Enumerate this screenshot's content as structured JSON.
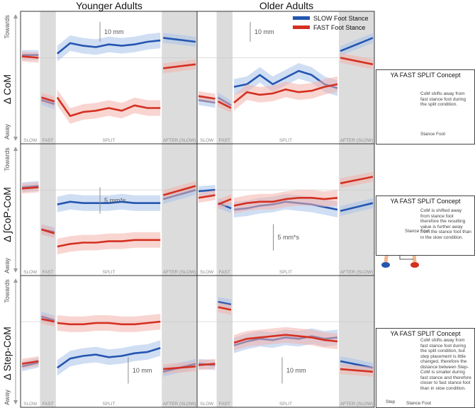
{
  "column_titles": [
    "Younger Adults",
    "Older Adults"
  ],
  "row_labels": [
    "Δ CoM",
    "Δ ∫CoP-CoM",
    "Δ Step-CoM"
  ],
  "towards_label": "Towards",
  "away_label": "Away",
  "legend": [
    {
      "label": "SLOW Foot Stance",
      "color": "#2456b0"
    },
    {
      "label": "FAST Foot Stance",
      "color": "#d43020"
    }
  ],
  "phase_labels": [
    "SLOW",
    "FAST",
    "SPLIT",
    "AFTER (SLOW)"
  ],
  "scale_bars": [
    "10 mm",
    "10 mm",
    "5 mm*s",
    "5 mm*s",
    "10 mm",
    "10 mm"
  ],
  "concepts": [
    {
      "title": "YA FAST SPLIT Concept",
      "text": "CoM shifts away from fast stance foot during the split condition.",
      "foot_label": "Stance Foot"
    },
    {
      "title": "YA FAST SPLIT Concept",
      "text": "CoM is shifted away from stance foot therefore the resulting value is further away from the stance foot than in the slow condition.",
      "foot_label": "Stance Foot"
    },
    {
      "title": "YA FAST SPLIT Concept",
      "text": "CoM shifts away from fast stance foot during the split condition, but step placement is little changed, therefore the distance between Step-CoM is smaller during fast stance and therefore closer to fast stance foot than in slow condition.",
      "foot_label": "Stance Foot",
      "step_label": "Step"
    }
  ],
  "colors": {
    "slow": "#2456b0",
    "fast": "#d43020",
    "slow_band": "#a9c3ea",
    "fast_band": "#f3b2ab",
    "phase_shade": "#dcdcdc"
  },
  "chart_data": [
    {
      "type": "line",
      "group": "Younger Adults",
      "measure": "Δ CoM",
      "series": [
        {
          "name": "SLOW Foot Stance",
          "segments": {
            "SLOW": [
              0.2,
              0.2
            ],
            "FAST": [
              -3.2,
              -3.5
            ],
            "SPLIT": [
              0.3,
              1.1,
              0.9,
              0.8,
              1.0,
              0.9,
              1.0,
              1.2,
              1.3
            ],
            "AFTER (SLOW)": [
              1.5,
              1.2
            ]
          }
        },
        {
          "name": "FAST Foot Stance",
          "segments": {
            "SLOW": [
              0.1,
              0.0
            ],
            "FAST": [
              -3.0,
              -3.3
            ],
            "SPLIT": [
              -3.0,
              -4.4,
              -4.1,
              -4.0,
              -3.8,
              -4.0,
              -3.6,
              -3.8,
              -3.8
            ],
            "AFTER (SLOW)": [
              -0.8,
              -0.5
            ]
          }
        }
      ]
    },
    {
      "type": "line",
      "group": "Older Adults",
      "measure": "Δ CoM",
      "series": [
        {
          "name": "SLOW Foot Stance",
          "segments": {
            "SLOW": [
              -3.2,
              -3.4
            ],
            "FAST": [
              -3.0,
              -3.6
            ],
            "SPLIT": [
              -2.2,
              -2.0,
              -1.3,
              -2.0,
              -1.5,
              -1.0,
              -1.3,
              -2.0,
              -2.3
            ],
            "AFTER (SLOW)": [
              0.5,
              1.5
            ]
          }
        },
        {
          "name": "FAST Foot Stance",
          "segments": {
            "SLOW": [
              -2.9,
              -3.1
            ],
            "FAST": [
              -3.3,
              -3.8
            ],
            "SPLIT": [
              -3.4,
              -2.6,
              -2.8,
              -2.7,
              -2.4,
              -2.6,
              -2.5,
              -2.2,
              -2.0
            ],
            "AFTER (SLOW)": [
              0.0,
              -0.5
            ]
          }
        }
      ]
    },
    {
      "type": "line",
      "group": "Younger Adults",
      "measure": "Δ ∫CoP-CoM",
      "series": [
        {
          "name": "SLOW Foot Stance",
          "segments": {
            "SLOW": [
              0.2,
              0.3
            ],
            "FAST": [
              -3.0,
              -3.2
            ],
            "SPLIT": [
              -1.1,
              -0.9,
              -1.0,
              -1.0,
              -1.0,
              -0.9,
              -1.0,
              -1.0,
              -1.0
            ],
            "AFTER (SLOW)": [
              -0.7,
              0.0
            ]
          }
        },
        {
          "name": "FAST Foot Stance",
          "segments": {
            "SLOW": [
              0.1,
              0.2
            ],
            "FAST": [
              -3.0,
              -3.3
            ],
            "SPLIT": [
              -4.3,
              -4.1,
              -4.0,
              -4.0,
              -3.9,
              -3.9,
              -3.8,
              -3.8,
              -3.8
            ],
            "AFTER (SLOW)": [
              -0.4,
              0.3
            ]
          }
        }
      ]
    },
    {
      "type": "line",
      "group": "Older Adults",
      "measure": "Δ ∫CoP-CoM",
      "series": [
        {
          "name": "SLOW Foot Stance",
          "segments": {
            "SLOW": [
              -0.1,
              0.0
            ],
            "FAST": [
              -1.0,
              -1.4
            ],
            "SPLIT": [
              -1.5,
              -1.4,
              -1.2,
              -1.1,
              -0.9,
              -1.0,
              -1.1,
              -1.3,
              -1.5
            ],
            "AFTER (SLOW)": [
              -1.6,
              -1.0
            ]
          }
        },
        {
          "name": "FAST Foot Stance",
          "segments": {
            "SLOW": [
              -0.6,
              -0.4
            ],
            "FAST": [
              -1.1,
              -0.7
            ],
            "SPLIT": [
              -1.2,
              -1.0,
              -0.9,
              -0.9,
              -0.7,
              -0.6,
              -0.6,
              -0.7,
              -0.6
            ],
            "AFTER (SLOW)": [
              0.5,
              1.0
            ]
          }
        }
      ]
    },
    {
      "type": "line",
      "group": "Younger Adults",
      "measure": "Δ Step-CoM",
      "series": [
        {
          "name": "SLOW Foot Stance",
          "segments": {
            "SLOW": [
              -3.4,
              -3.1
            ],
            "FAST": [
              0.4,
              0.1
            ],
            "SPLIT": [
              -3.5,
              -2.8,
              -2.6,
              -2.5,
              -2.7,
              -2.6,
              -2.4,
              -2.3,
              -2.0
            ],
            "AFTER (SLOW)": [
              -3.8,
              -3.2
            ]
          }
        },
        {
          "name": "FAST Foot Stance",
          "segments": {
            "SLOW": [
              -3.2,
              -3.0
            ],
            "FAST": [
              0.2,
              0.0
            ],
            "SPLIT": [
              -0.1,
              -0.2,
              -0.2,
              -0.1,
              -0.1,
              -0.2,
              -0.2,
              -0.1,
              0.0
            ],
            "AFTER (SLOW)": [
              -3.6,
              -3.4
            ]
          }
        }
      ]
    },
    {
      "type": "line",
      "group": "Older Adults",
      "measure": "Δ Step-CoM",
      "series": [
        {
          "name": "SLOW Foot Stance",
          "segments": {
            "SLOW": [
              -3.2,
              -3.3
            ],
            "FAST": [
              1.5,
              1.3
            ],
            "SPLIT": [
              -1.8,
              -1.5,
              -1.3,
              -1.4,
              -1.2,
              -1.3,
              -1.1,
              -1.3,
              -1.2
            ],
            "AFTER (SLOW)": [
              -3.0,
              -3.5
            ]
          }
        },
        {
          "name": "FAST Foot Stance",
          "segments": {
            "SLOW": [
              -3.3,
              -3.2
            ],
            "FAST": [
              1.1,
              0.9
            ],
            "SPLIT": [
              -1.6,
              -1.3,
              -1.2,
              -1.1,
              -1.0,
              -1.1,
              -1.2,
              -1.4,
              -1.5
            ],
            "AFTER (SLOW)": [
              -3.6,
              -3.8
            ]
          }
        }
      ]
    }
  ]
}
